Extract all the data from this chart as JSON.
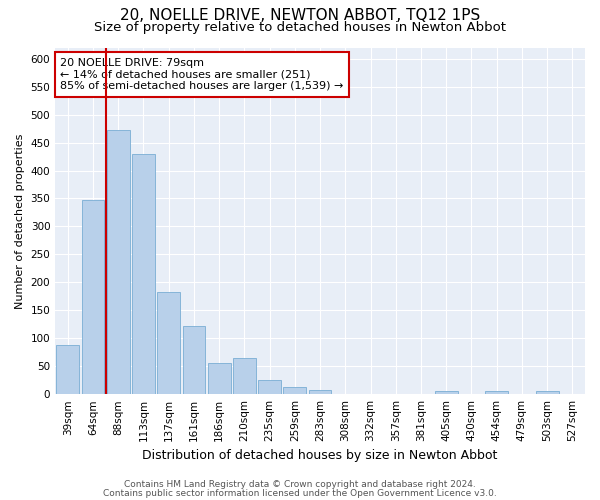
{
  "title": "20, NOELLE DRIVE, NEWTON ABBOT, TQ12 1PS",
  "subtitle": "Size of property relative to detached houses in Newton Abbot",
  "xlabel": "Distribution of detached houses by size in Newton Abbot",
  "ylabel": "Number of detached properties",
  "categories": [
    "39sqm",
    "64sqm",
    "88sqm",
    "113sqm",
    "137sqm",
    "161sqm",
    "186sqm",
    "210sqm",
    "235sqm",
    "259sqm",
    "283sqm",
    "308sqm",
    "332sqm",
    "357sqm",
    "381sqm",
    "405sqm",
    "430sqm",
    "454sqm",
    "479sqm",
    "503sqm",
    "527sqm"
  ],
  "values": [
    88,
    348,
    472,
    430,
    183,
    122,
    55,
    65,
    25,
    12,
    8,
    0,
    0,
    0,
    0,
    5,
    0,
    5,
    0,
    5,
    0
  ],
  "bar_color": "#b8d0ea",
  "bar_edge_color": "#7aadd4",
  "vline_x_index": 1.5,
  "vline_color": "#cc0000",
  "annotation_text": "20 NOELLE DRIVE: 79sqm\n← 14% of detached houses are smaller (251)\n85% of semi-detached houses are larger (1,539) →",
  "annotation_box_color": "#ffffff",
  "annotation_box_edge_color": "#cc0000",
  "ylim": [
    0,
    620
  ],
  "yticks": [
    0,
    50,
    100,
    150,
    200,
    250,
    300,
    350,
    400,
    450,
    500,
    550,
    600
  ],
  "footer1": "Contains HM Land Registry data © Crown copyright and database right 2024.",
  "footer2": "Contains public sector information licensed under the Open Government Licence v3.0.",
  "plot_bg_color": "#e8eef7",
  "title_fontsize": 11,
  "subtitle_fontsize": 9.5,
  "xlabel_fontsize": 9,
  "ylabel_fontsize": 8,
  "tick_fontsize": 7.5,
  "annotation_fontsize": 8,
  "footer_fontsize": 6.5
}
